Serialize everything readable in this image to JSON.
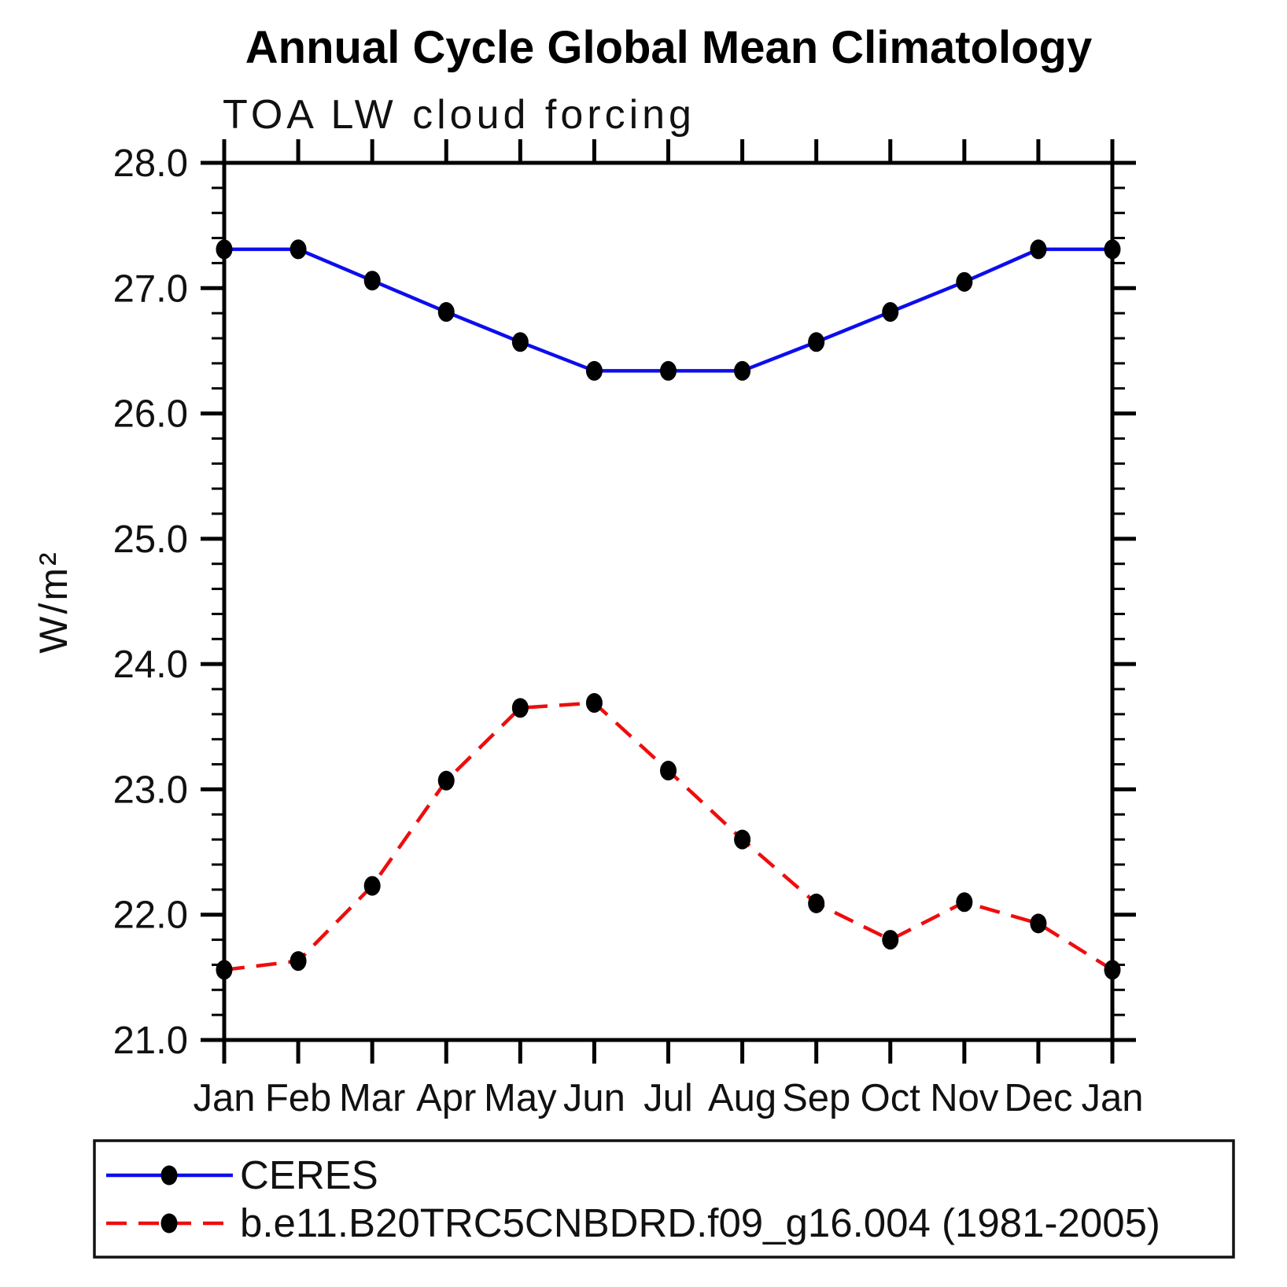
{
  "chart_data": {
    "type": "line",
    "title": "Annual Cycle Global Mean Climatology",
    "subtitle": "TOA LW cloud forcing",
    "ylabel": "W/m²",
    "xlabel": "",
    "categories": [
      "Jan",
      "Feb",
      "Mar",
      "Apr",
      "May",
      "Jun",
      "Jul",
      "Aug",
      "Sep",
      "Oct",
      "Nov",
      "Dec",
      "Jan"
    ],
    "ylim": [
      21.0,
      28.0
    ],
    "y_major_step": 1.0,
    "y_minor_step": 0.2,
    "grid": false,
    "legend_position": "bottom-left-box",
    "axis_color": "#000000",
    "series": [
      {
        "name": "CERES",
        "color": "#0d0dee",
        "line_style": "solid",
        "marker": "filled-circle",
        "marker_color": "#000000",
        "values": [
          27.31,
          27.31,
          27.06,
          26.81,
          26.57,
          26.34,
          26.34,
          26.34,
          26.57,
          26.81,
          27.05,
          27.31,
          27.31
        ]
      },
      {
        "name": "b.e11.B20TRC5CNBDRD.f09_g16.004 (1981-2005)",
        "color": "#ee0d0d",
        "line_style": "dashed",
        "marker": "filled-circle",
        "marker_color": "#000000",
        "values": [
          21.56,
          21.63,
          22.23,
          23.07,
          23.65,
          23.69,
          23.15,
          22.6,
          22.09,
          21.8,
          22.1,
          21.93,
          21.56
        ]
      }
    ]
  }
}
